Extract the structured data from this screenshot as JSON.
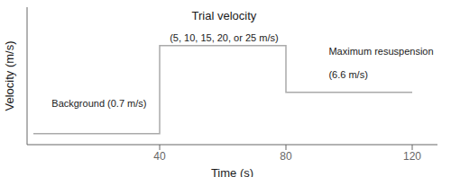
{
  "chart_data": {
    "type": "line",
    "x_label": "Time (s)",
    "y_label": "Velocity (m/s)",
    "x": [
      0,
      40,
      40,
      80,
      80,
      120
    ],
    "values": [
      0.08,
      0.08,
      0.72,
      0.72,
      0.38,
      0.38
    ],
    "color": "#aaaaaa",
    "xlim": [
      -2,
      128
    ],
    "ylim": [
      0,
      1.0
    ],
    "xticks": [
      40,
      80,
      120
    ],
    "tick_labels": "x",
    "grid": false,
    "annotations": [
      "Background (0.7 m/s)",
      "Trial velocity",
      "(5, 10, 15, 20, or 25 m/s)",
      "Maximum resuspension",
      "(6.6 m/s)"
    ]
  }
}
